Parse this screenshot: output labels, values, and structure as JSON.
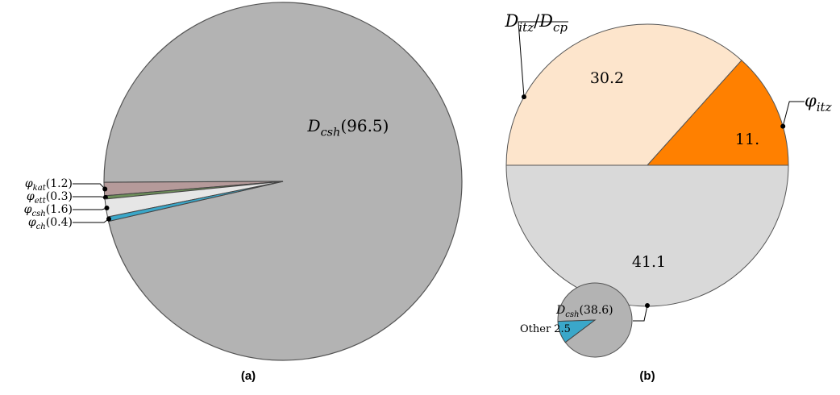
{
  "chart_data": [
    {
      "type": "pie",
      "panel": "(a)",
      "slices": [
        {
          "label": "D_csh",
          "value": 96.5,
          "color": "#b3b3b3",
          "text": "D",
          "sub": "csh",
          "paren": "(96.5)"
        },
        {
          "label": "φ_kat",
          "value": 1.2,
          "color": "#b59a9a",
          "text": "φ",
          "sub": "kat",
          "paren": "(1.2)"
        },
        {
          "label": "φ_ett",
          "value": 0.3,
          "color": "#6e8f5a",
          "text": "φ",
          "sub": "ett",
          "paren": "(0.3)"
        },
        {
          "label": "φ_csh",
          "value": 1.6,
          "color": "#e6e6e6",
          "text": "φ",
          "sub": "csh",
          "paren": "(1.6)"
        },
        {
          "label": "φ_ch",
          "value": 0.4,
          "color": "#3aa7c9",
          "text": "φ",
          "sub": "ch",
          "paren": "(0.4)"
        }
      ]
    },
    {
      "type": "pie",
      "panel": "(b)",
      "slices": [
        {
          "label": "D_itz/D_cp",
          "value": 30.2,
          "display": "30.2",
          "color": "#fde5cc",
          "text": "D",
          "sub": "itz",
          "text2": "D",
          "sub2": "cp"
        },
        {
          "label": "φ_itz",
          "value": 11,
          "display": "11.",
          "color": "#ff8000",
          "text": "φ",
          "sub": "itz"
        },
        {
          "label": "D_csh",
          "value": 41.1,
          "display": "41.1",
          "color": "#d9d9d9"
        }
      ],
      "inset": {
        "label": "D_csh",
        "text": "D",
        "sub": "csh",
        "paren": "(38.6)",
        "color": "#b3b3b3",
        "slices": [
          {
            "label": "D_csh",
            "value": 38.6,
            "color": "#b3b3b3"
          },
          {
            "label": "Other",
            "value": 2.5,
            "display": "2.5",
            "color": "#3aa7c9",
            "text": "Other"
          }
        ]
      }
    }
  ]
}
